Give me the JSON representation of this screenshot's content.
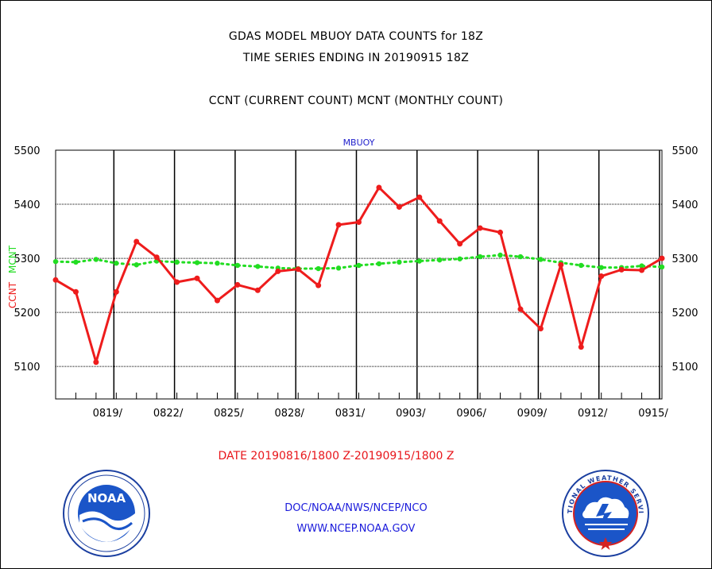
{
  "header": {
    "title_line1": "GDAS MODEL MBUOY DATA COUNTS for 18Z",
    "title_line2": "TIME SERIES ENDING IN 20190915 18Z",
    "subtitle": "CCNT (CURRENT COUNT) MCNT (MONTHLY COUNT)"
  },
  "footer": {
    "date_range": "DATE 20190816/1800 Z-20190915/1800 Z",
    "org_line": "DOC/NOAA/NWS/NCEP/NCO",
    "url_line": "WWW.NCEP.NOAA.GOV"
  },
  "logos": {
    "noaa_text": "NOAA",
    "nws_text": "NATIONAL WEATHER SERVICE"
  },
  "colors": {
    "ccnt": "#ee1c1c",
    "mcnt": "#22dd22",
    "grid_v": "#000000",
    "grid_h": "#000000",
    "panel_label": "#2222cc"
  },
  "chart_data": {
    "type": "line",
    "panel_label": "MBUOY",
    "ylabel_ccnt": "CCNT",
    "ylabel_mcnt": "MCNT",
    "ylim": [
      5040,
      5500
    ],
    "yticks": [
      5100,
      5200,
      5300,
      5400,
      5500
    ],
    "xlim": [
      0,
      30
    ],
    "x_tick_positions": [
      3,
      6,
      9,
      12,
      15,
      18,
      21,
      24,
      27,
      30
    ],
    "x_tick_labels": [
      "0819/",
      "0822/",
      "0825/",
      "0828/",
      "0831/",
      "0903/",
      "0906/",
      "0909/",
      "0912/",
      "0915/"
    ],
    "grid": true,
    "series": [
      {
        "name": "CCNT",
        "style": "solid-with-dots",
        "x": [
          0,
          1,
          2,
          3,
          4,
          5,
          6,
          7,
          8,
          9,
          10,
          11,
          12,
          13,
          14,
          15,
          16,
          17,
          18,
          19,
          20,
          21,
          22,
          23,
          24,
          25,
          26,
          27,
          28,
          29,
          30
        ],
        "values": [
          5260,
          5238,
          5108,
          5238,
          5331,
          5302,
          5256,
          5263,
          5222,
          5251,
          5241,
          5276,
          5280,
          5250,
          5362,
          5367,
          5431,
          5395,
          5413,
          5369,
          5327,
          5356,
          5348,
          5206,
          5170,
          5288,
          5136,
          5267,
          5279,
          5278,
          5300
        ]
      },
      {
        "name": "MCNT",
        "style": "dotted",
        "x": [
          0,
          1,
          2,
          3,
          4,
          5,
          6,
          7,
          8,
          9,
          10,
          11,
          12,
          13,
          14,
          15,
          16,
          17,
          18,
          19,
          20,
          21,
          22,
          23,
          24,
          25,
          26,
          27,
          28,
          29,
          30
        ],
        "values": [
          5294,
          5293,
          5298,
          5291,
          5288,
          5295,
          5293,
          5292,
          5291,
          5287,
          5285,
          5282,
          5281,
          5281,
          5282,
          5287,
          5290,
          5293,
          5295,
          5297,
          5299,
          5303,
          5306,
          5303,
          5298,
          5292,
          5287,
          5283,
          5283,
          5286,
          5284
        ]
      }
    ]
  }
}
